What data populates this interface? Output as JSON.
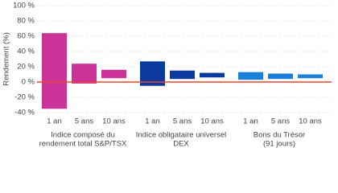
{
  "chart_data": {
    "type": "floating-bar",
    "y_label": "Rendement (%)",
    "ylim": [
      -40,
      100
    ],
    "yticks": [
      {
        "value": -40,
        "label": "-40 %"
      },
      {
        "value": -20,
        "label": "-20 %"
      },
      {
        "value": 0,
        "label": "0 %"
      },
      {
        "value": 20,
        "label": "20 %"
      },
      {
        "value": 40,
        "label": "40 %"
      },
      {
        "value": 60,
        "label": "60 %"
      },
      {
        "value": 80,
        "label": "80 %"
      },
      {
        "value": 100,
        "label": "100 %"
      }
    ],
    "grid": true,
    "zero_line_color": "#e8452c",
    "groups": [
      {
        "name": [
          "Indice composé du",
          "rendement total S&P/TSX"
        ],
        "color": "#cc3399",
        "categories": [
          "1 an",
          "5 ans",
          "10 ans"
        ],
        "low": [
          -35,
          -2,
          5
        ],
        "high": [
          64,
          24,
          16
        ]
      },
      {
        "name": [
          "Indice obligataire universel",
          "DEX"
        ],
        "color": "#0a3a9e",
        "categories": [
          "1 an",
          "5 ans",
          "10 ans"
        ],
        "low": [
          -5,
          4,
          6
        ],
        "high": [
          27,
          15,
          12
        ]
      },
      {
        "name": [
          "Bons du Trésor",
          "(91 jours)"
        ],
        "color": "#1a7fd9",
        "categories": [
          "1 an",
          "5 ans",
          "10 ans"
        ],
        "low": [
          3,
          4,
          5
        ],
        "high": [
          13,
          11,
          10
        ]
      }
    ]
  }
}
